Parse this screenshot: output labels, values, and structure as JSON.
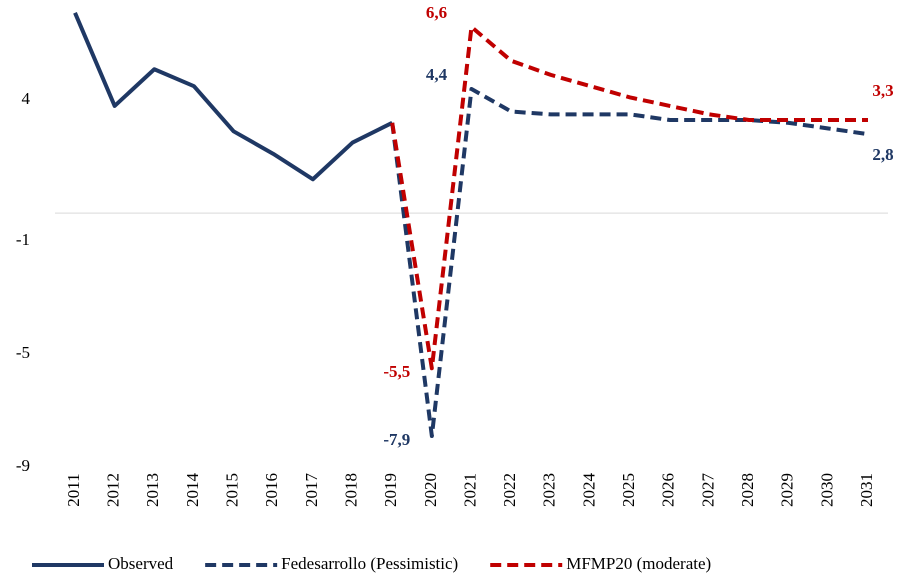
{
  "chart_data": {
    "type": "line",
    "categories": [
      "2011",
      "2012",
      "2013",
      "2014",
      "2015",
      "2016",
      "2017",
      "2018",
      "2019",
      "2020",
      "2021",
      "2022",
      "2023",
      "2024",
      "2025",
      "2026",
      "2027",
      "2028",
      "2029",
      "2030",
      "2031"
    ],
    "series": [
      {
        "name": "Observed",
        "color": "#1f3864",
        "dash": false,
        "values": [
          7.1,
          3.8,
          5.1,
          4.5,
          2.9,
          2.1,
          1.2,
          2.5,
          3.2,
          null,
          null,
          null,
          null,
          null,
          null,
          null,
          null,
          null,
          null,
          null,
          null
        ]
      },
      {
        "name": "Fedesarrollo (Pessimistic)",
        "color": "#1f3864",
        "dash": true,
        "values": [
          null,
          null,
          null,
          null,
          null,
          null,
          null,
          null,
          3.2,
          -7.9,
          4.4,
          3.6,
          3.5,
          3.5,
          3.5,
          3.3,
          3.3,
          3.3,
          3.2,
          3.0,
          2.8
        ],
        "value_labels": [
          null,
          null,
          null,
          null,
          null,
          null,
          null,
          null,
          null,
          "-7,9",
          "4,4",
          null,
          null,
          null,
          null,
          null,
          null,
          null,
          null,
          null,
          "2,8"
        ]
      },
      {
        "name": "MFMP20 (moderate)",
        "color": "#c00000",
        "dash": true,
        "values": [
          null,
          null,
          null,
          null,
          null,
          null,
          null,
          null,
          3.2,
          -5.5,
          6.6,
          5.4,
          4.9,
          4.5,
          4.1,
          3.8,
          3.5,
          3.3,
          3.3,
          3.3,
          3.3
        ],
        "value_labels": [
          null,
          null,
          null,
          null,
          null,
          null,
          null,
          null,
          null,
          "-5,5",
          "6,6",
          null,
          null,
          null,
          null,
          null,
          null,
          null,
          null,
          null,
          "3,3"
        ]
      }
    ],
    "ylim": [
      -9,
      7.2
    ],
    "yticks": [
      4,
      -1,
      -5,
      -9
    ],
    "legend": "bottom"
  }
}
